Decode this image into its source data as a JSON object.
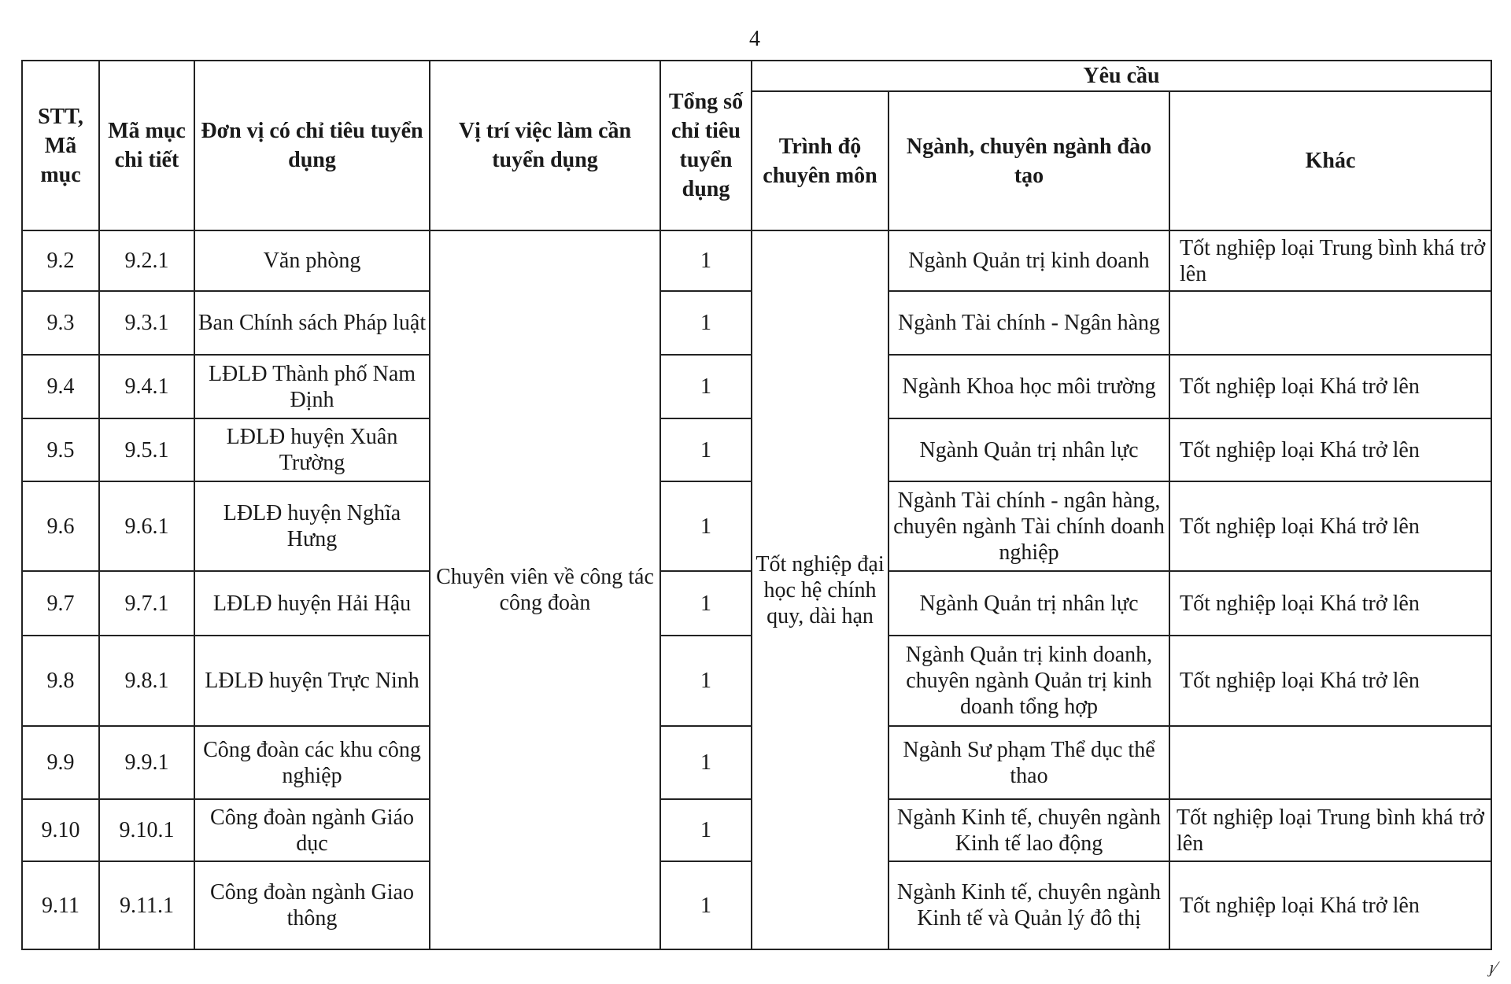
{
  "page_number": "4",
  "header": {
    "stt": "STT, Mã mục",
    "ma_muc": "Mã mục chi tiết",
    "don_vi": "Đơn vị có chỉ tiêu tuyển dụng",
    "vi_tri": "Vị trí việc làm cần tuyển dụng",
    "tong_so": "Tổng số chỉ tiêu tuyển dụng",
    "yeu_cau": "Yêu cầu",
    "trinh_do": "Trình độ chuyên môn",
    "nganh": "Ngành, chuyên ngành đào tạo",
    "khac": "Khác"
  },
  "shared": {
    "vi_tri": "Chuyên viên về công tác công đoàn",
    "trinh_do": "Tốt nghiệp đại học hệ chính quy, dài hạn"
  },
  "rows": [
    {
      "stt": "9.2",
      "ma": "9.2.1",
      "don_vi": "Văn phòng",
      "so": "1",
      "nganh": "Ngành Quản trị kinh doanh",
      "khac": "Tốt nghiệp loại Trung bình khá trở lên"
    },
    {
      "stt": "9.3",
      "ma": "9.3.1",
      "don_vi": "Ban Chính sách Pháp luật",
      "so": "1",
      "nganh": "Ngành Tài chính - Ngân hàng",
      "khac": ""
    },
    {
      "stt": "9.4",
      "ma": "9.4.1",
      "don_vi": "LĐLĐ Thành phố Nam Định",
      "so": "1",
      "nganh": "Ngành Khoa học môi trường",
      "khac": "Tốt nghiệp loại Khá trở lên"
    },
    {
      "stt": "9.5",
      "ma": "9.5.1",
      "don_vi": "LĐLĐ huyện Xuân Trường",
      "so": "1",
      "nganh": "Ngành Quản trị nhân lực",
      "khac": "Tốt nghiệp loại Khá trở lên"
    },
    {
      "stt": "9.6",
      "ma": "9.6.1",
      "don_vi": "LĐLĐ huyện Nghĩa Hưng",
      "so": "1",
      "nganh": "Ngành Tài chính - ngân hàng, chuyên ngành Tài chính doanh nghiệp",
      "khac": "Tốt nghiệp loại Khá trở lên"
    },
    {
      "stt": "9.7",
      "ma": "9.7.1",
      "don_vi": "LĐLĐ huyện Hải Hậu",
      "so": "1",
      "nganh": "Ngành Quản trị nhân lực",
      "khac": "Tốt nghiệp loại Khá trở lên"
    },
    {
      "stt": "9.8",
      "ma": "9.8.1",
      "don_vi": "LĐLĐ huyện Trực Ninh",
      "so": "1",
      "nganh": "Ngành Quản trị kinh doanh, chuyên ngành Quản trị kinh doanh tổng hợp",
      "khac": "Tốt nghiệp loại Khá trở lên"
    },
    {
      "stt": "9.9",
      "ma": "9.9.1",
      "don_vi": "Công đoàn các khu công nghiệp",
      "so": "1",
      "nganh": "Ngành Sư phạm Thể dục thể thao",
      "khac": ""
    },
    {
      "stt": "9.10",
      "ma": "9.10.1",
      "don_vi": "Công đoàn ngành Giáo dục",
      "so": "1",
      "nganh": "Ngành Kinh tế, chuyên ngành Kinh tế lao động",
      "khac": "Tốt nghiệp loại Trung bình khá trở lên"
    },
    {
      "stt": "9.11",
      "ma": "9.11.1",
      "don_vi": "Công đoàn ngành Giao thông",
      "so": "1",
      "nganh": "Ngành Kinh tế, chuyên ngành Kinh tế và Quản lý đô thị",
      "khac": "Tốt nghiệp loại Khá trở lên"
    }
  ]
}
